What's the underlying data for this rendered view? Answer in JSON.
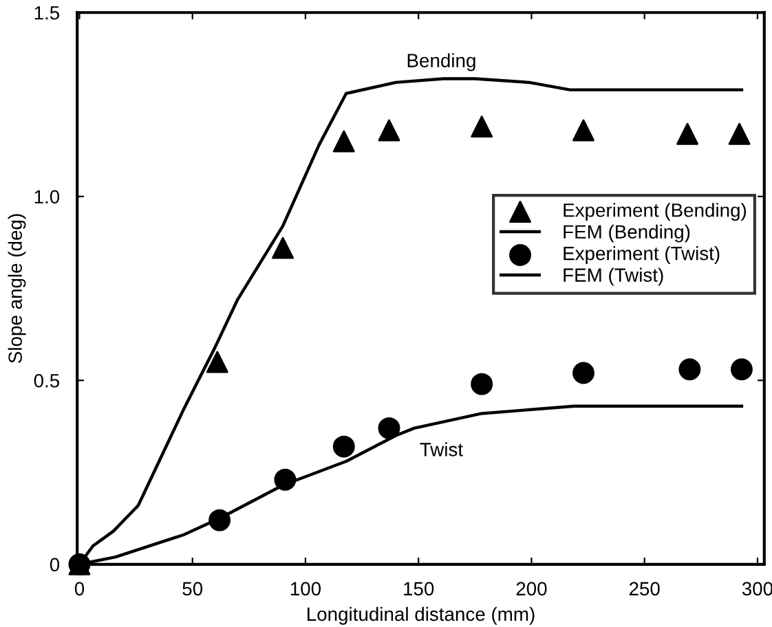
{
  "chart_data": {
    "type": "scatter",
    "xlabel": "Longitudinal distance (mm)",
    "ylabel": "Slope angle (deg)",
    "xlim": [
      -1,
      303
    ],
    "ylim": [
      0,
      1.5
    ],
    "xticks": [
      0,
      50,
      100,
      150,
      200,
      250,
      300
    ],
    "yticks": [
      {
        "value": 0,
        "label": "0"
      },
      0.5,
      {
        "value": 1,
        "label": "1.0"
      },
      1.5
    ],
    "grid": false,
    "legend": "right",
    "annotations": [
      "Bending",
      "Twist"
    ],
    "series": [
      {
        "name": "Experiment (Bending)",
        "marker": "triangle",
        "color": "#000000",
        "x": [
          0,
          61,
          90,
          117,
          137,
          178,
          223,
          269,
          292
        ],
        "values": [
          0,
          0.55,
          0.86,
          1.15,
          1.18,
          1.19,
          1.18,
          1.17,
          1.17
        ]
      },
      {
        "name": "FEM (Bending)",
        "type": "line",
        "marker": "none",
        "line_style": "solid",
        "color": "#000000",
        "x": [
          0,
          6,
          15,
          26,
          46,
          60,
          70,
          90,
          106,
          118,
          140,
          161,
          175,
          199,
          217,
          293
        ],
        "values": [
          0,
          0.05,
          0.09,
          0.16,
          0.42,
          0.59,
          0.72,
          0.92,
          1.14,
          1.28,
          1.31,
          1.32,
          1.32,
          1.31,
          1.29,
          1.29
        ]
      },
      {
        "name": "Experiment (Twist)",
        "marker": "circle",
        "color": "#000000",
        "x": [
          0,
          62,
          91,
          117,
          137,
          178,
          223,
          270,
          293
        ],
        "values": [
          0,
          0.12,
          0.23,
          0.32,
          0.37,
          0.49,
          0.52,
          0.53,
          0.53
        ]
      },
      {
        "name": "FEM (Twist)",
        "type": "line",
        "marker": "none",
        "line_style": "solid",
        "color": "#000000",
        "x": [
          0,
          16,
          46,
          62,
          90,
          118,
          140,
          148,
          178,
          219,
          293
        ],
        "values": [
          0,
          0.02,
          0.08,
          0.125,
          0.215,
          0.28,
          0.35,
          0.37,
          0.41,
          0.43,
          0.43
        ]
      }
    ]
  }
}
